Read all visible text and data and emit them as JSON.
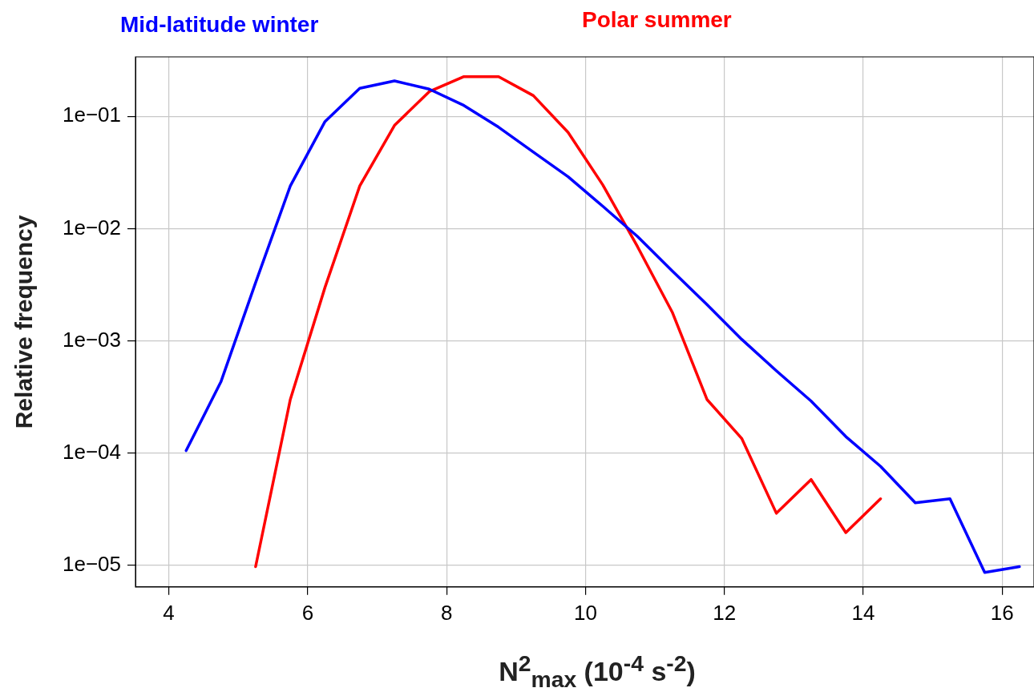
{
  "chart_data": {
    "type": "line",
    "xlabel": "N$^{2}$$_{max}$ (10$^{-4}$ s$^{-2}$)",
    "ylabel": "Relative frequency",
    "log": "y",
    "grid": true,
    "legend": false,
    "marker": "none",
    "line_style": "solid",
    "xlim": [
      3.52,
      16.46
    ],
    "xticks": [
      4,
      6,
      8,
      10,
      12,
      14,
      16
    ],
    "ylim": [
      6.4e-06,
      0.339
    ],
    "yticks": [
      {
        "value": 1e-05,
        "label": "1e−05"
      },
      {
        "value": 0.0001,
        "label": "1e−04"
      },
      {
        "value": 0.001,
        "label": "1e−03"
      },
      {
        "value": 0.01,
        "label": "1e−02"
      },
      {
        "value": 0.1,
        "label": "1e−01"
      }
    ],
    "series": [
      {
        "name": "Mid-latitude winter",
        "color": "#0000ff",
        "x": [
          4.25,
          4.75,
          5.25,
          5.75,
          6.25,
          6.75,
          7.25,
          7.75,
          8.25,
          8.75,
          9.25,
          9.75,
          10.25,
          10.75,
          11.25,
          11.75,
          12.25,
          12.75,
          13.25,
          13.75,
          14.25,
          14.75,
          15.25,
          15.75,
          16.25
        ],
        "values": [
          0.000105,
          0.00043,
          0.0033,
          0.024,
          0.09,
          0.178,
          0.207,
          0.175,
          0.125,
          0.08,
          0.048,
          0.029,
          0.0158,
          0.0085,
          0.0042,
          0.0021,
          0.00103,
          0.00054,
          0.00029,
          0.00014,
          7.6e-05,
          3.6e-05,
          3.9e-05,
          8.6e-06,
          9.7e-06
        ]
      },
      {
        "name": "Polar summer",
        "color": "#ff0000",
        "x": [
          5.25,
          5.75,
          6.25,
          6.75,
          7.25,
          7.75,
          8.25,
          8.75,
          9.25,
          9.75,
          10.25,
          10.75,
          11.25,
          11.75,
          12.25,
          12.75,
          13.25,
          13.75,
          14.25
        ],
        "values": [
          9.7e-06,
          0.0003,
          0.003,
          0.024,
          0.083,
          0.166,
          0.226,
          0.226,
          0.153,
          0.072,
          0.0245,
          0.0069,
          0.0018,
          0.0003,
          0.000135,
          2.9e-05,
          5.8e-05,
          1.95e-05,
          3.9e-05
        ]
      }
    ]
  }
}
